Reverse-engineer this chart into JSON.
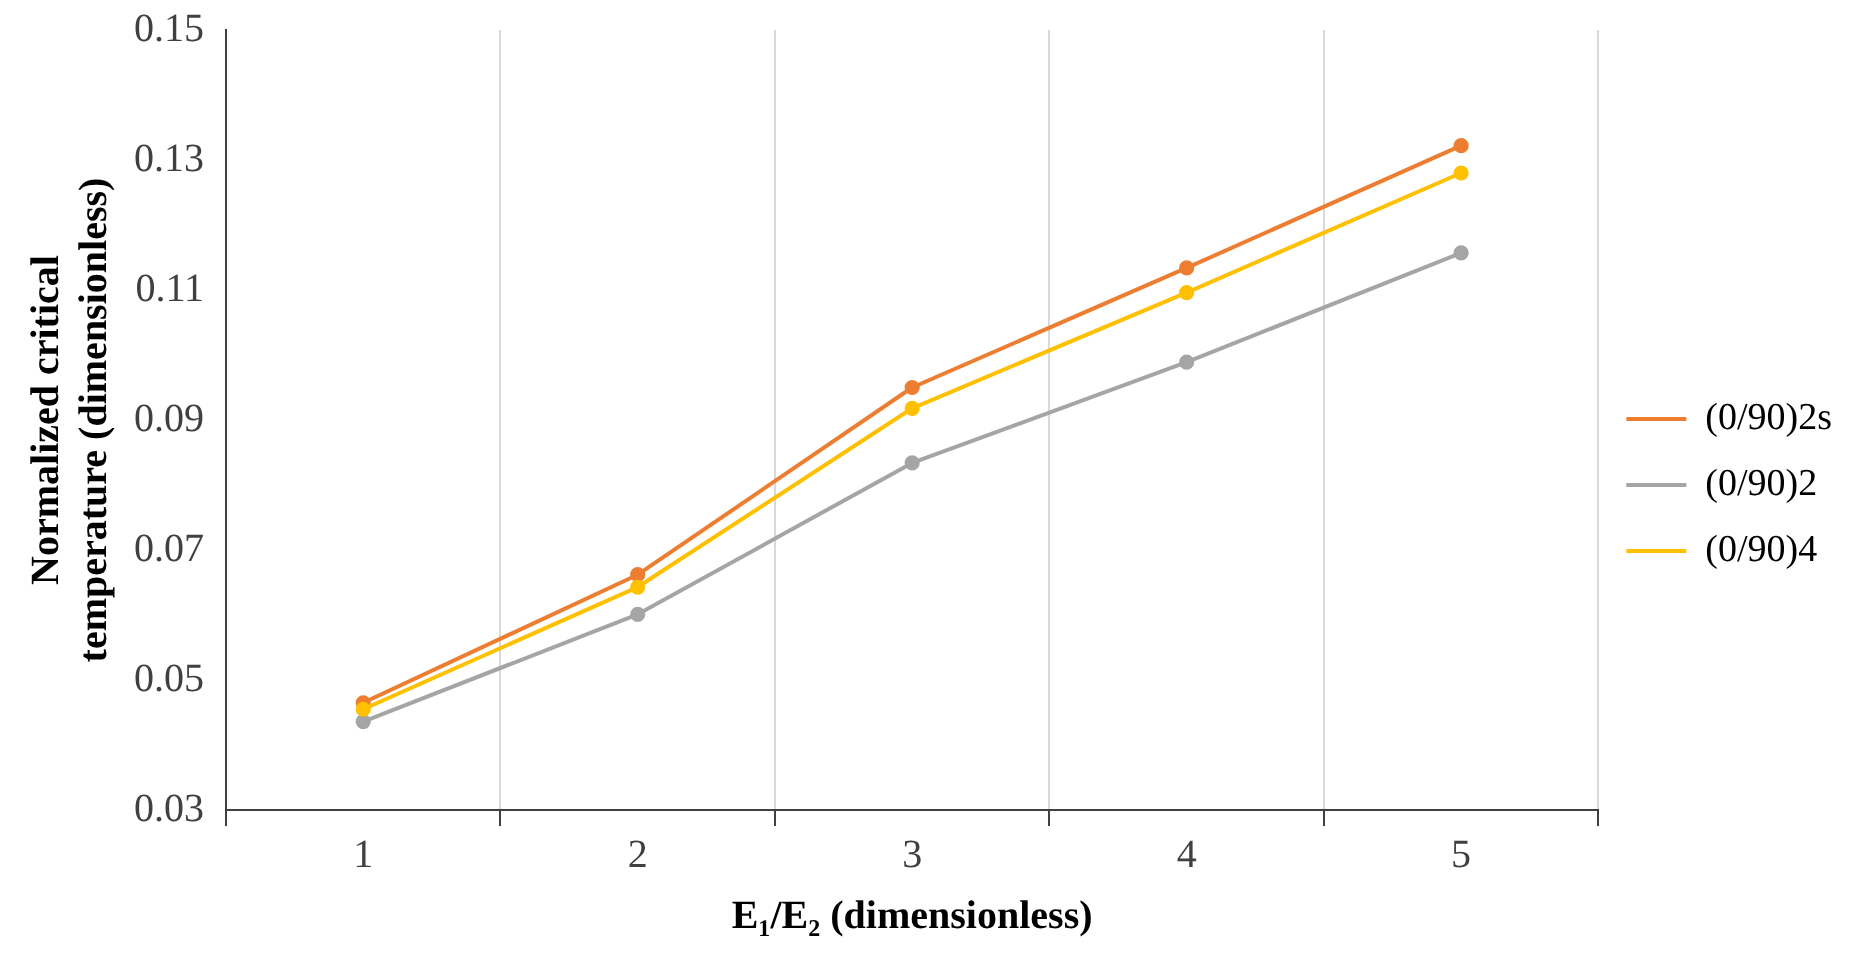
{
  "chart_data": {
    "type": "line",
    "xlabel": "E₁/E₂ (dimensionless)",
    "ylabel": "Normalized critical temperature (dimensionless)",
    "categories": [
      "1",
      "2",
      "3",
      "4",
      "5"
    ],
    "series": [
      {
        "name": "(0/90)2s",
        "color": "#ed7d31",
        "values": [
          0.0465,
          0.0662,
          0.095,
          0.1134,
          0.1322
        ]
      },
      {
        "name": "(0/90)2",
        "color": "#a5a5a5",
        "values": [
          0.0436,
          0.0601,
          0.0834,
          0.0989,
          0.1157
        ]
      },
      {
        "name": "(0/90)4",
        "color": "#ffc000",
        "values": [
          0.0455,
          0.0643,
          0.0918,
          0.1096,
          0.128
        ]
      }
    ],
    "ylim": [
      0.03,
      0.15
    ],
    "yticks": [
      0.03,
      0.05,
      0.07,
      0.09,
      0.11,
      0.13,
      0.15
    ],
    "grid": "x",
    "legend": "right",
    "marker": "circle",
    "line_style": "solid"
  }
}
